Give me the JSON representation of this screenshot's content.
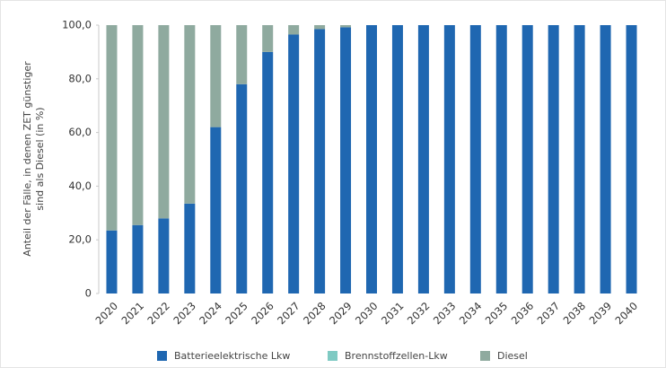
{
  "chart_data": {
    "type": "stacked_bar",
    "ylabel": [
      "Anteil der Fälle, in denen ZET günstiger",
      "sind als Diesel (in %)"
    ],
    "categories": [
      "2020",
      "2021",
      "2022",
      "2023",
      "2024",
      "2025",
      "2026",
      "2027",
      "2028",
      "2029",
      "2030",
      "2031",
      "2032",
      "2033",
      "2034",
      "2035",
      "2036",
      "2037",
      "2038",
      "2039",
      "2040"
    ],
    "series": [
      {
        "name": "Batterieelektrische Lkw",
        "color": "#1f67b1",
        "values": [
          23.5,
          25.5,
          28,
          33.5,
          62,
          78,
          90,
          96.5,
          98.5,
          99.2,
          100,
          100,
          100,
          100,
          100,
          100,
          100,
          100,
          100,
          100,
          100
        ]
      },
      {
        "name": "Brennstoffzellen-Lkw",
        "color": "#7fcac3",
        "values": [
          0,
          0,
          0,
          0,
          0,
          0,
          0,
          0,
          0,
          0,
          0,
          0,
          0,
          0,
          0,
          0,
          0,
          0,
          0,
          0,
          0
        ]
      },
      {
        "name": "Diesel",
        "color": "#8faa9f",
        "values": [
          76.5,
          74.5,
          72,
          66.5,
          38,
          22,
          10,
          3.5,
          1.5,
          0.8,
          0,
          0,
          0,
          0,
          0,
          0,
          0,
          0,
          0,
          0,
          0
        ]
      }
    ],
    "ylim": [
      0,
      100
    ],
    "yticks": [
      0,
      {
        "value": 20,
        "label": "20,0"
      },
      {
        "value": 40,
        "label": "40,0"
      },
      {
        "value": 60,
        "label": "60,0"
      },
      {
        "value": 80,
        "label": "80,0"
      },
      {
        "value": 100,
        "label": "100,0"
      }
    ]
  }
}
